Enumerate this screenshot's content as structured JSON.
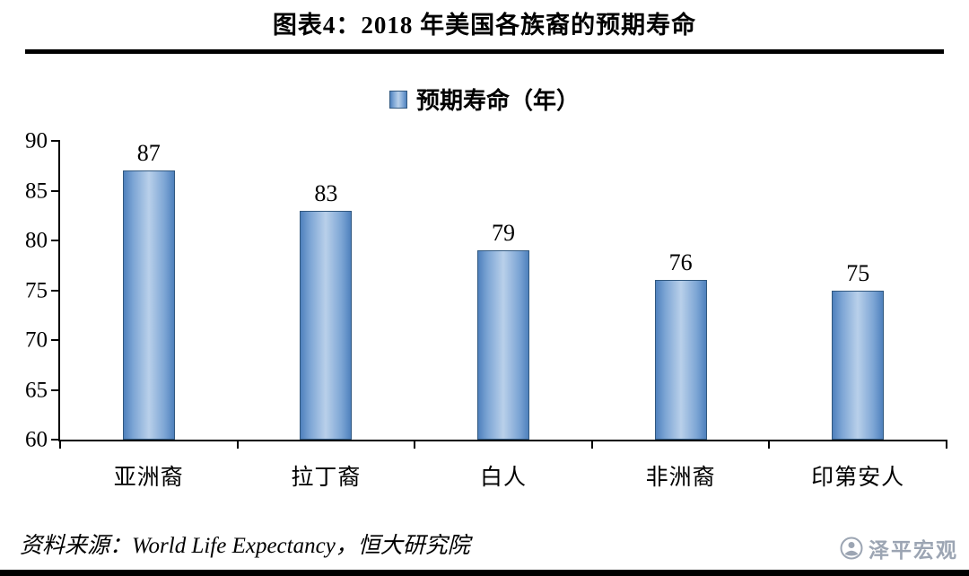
{
  "header": {
    "title": "图表4：2018 年美国各族裔的预期寿命"
  },
  "chart_data": {
    "type": "bar",
    "title": "图表4：2018 年美国各族裔的预期寿命",
    "legend": "预期寿命（年）",
    "legend_position": "top",
    "categories": [
      "亚洲裔",
      "拉丁裔",
      "白人",
      "非洲裔",
      "印第安人"
    ],
    "values": [
      87,
      83,
      79,
      76,
      75
    ],
    "xlabel": "",
    "ylabel": "",
    "ylim": [
      60,
      90
    ],
    "yticks": [
      60,
      65,
      70,
      75,
      80,
      85,
      90
    ],
    "grid": false,
    "bar_color": "#4f81bd",
    "bar_highlight_color": "#b9d0ea"
  },
  "footer": {
    "source": "资料来源：World Life Expectancy，恒大研究院",
    "watermark": "泽平宏观"
  }
}
